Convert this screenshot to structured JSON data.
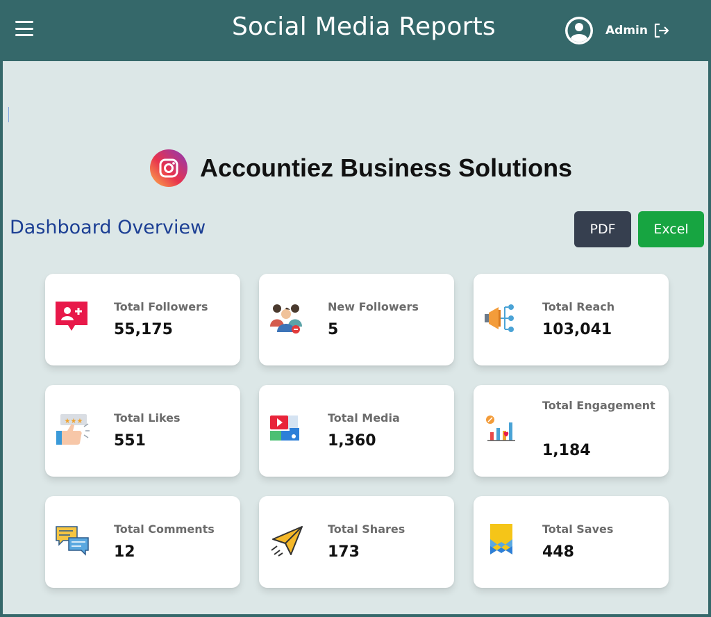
{
  "header": {
    "title": "Social Media Reports",
    "user_name": "Admin"
  },
  "company": {
    "name": "Accountiez Business Solutions",
    "logo_icon": "instagram-logo-icon"
  },
  "dashboard": {
    "title": "Dashboard Overview",
    "pdf_label": "PDF",
    "excel_label": "Excel"
  },
  "colors": {
    "header_bg": "#35686a",
    "content_bg": "#dce7e7",
    "dashboard_title": "#1c3f94",
    "pdf_button": "#363f4f",
    "excel_button": "#17a541"
  },
  "cards": [
    {
      "label": "Total Followers",
      "value": "55,175",
      "icon": "followers-icon"
    },
    {
      "label": "New Followers",
      "value": "5",
      "icon": "new-followers-icon"
    },
    {
      "label": "Total Reach",
      "value": "103,041",
      "icon": "reach-megaphone-icon"
    },
    {
      "label": "Total Likes",
      "value": "551",
      "icon": "likes-thumb-icon"
    },
    {
      "label": "Total Media",
      "value": "1,360",
      "icon": "media-icon"
    },
    {
      "label": "Total Engagement",
      "value": "1,184",
      "icon": "engagement-chart-icon"
    },
    {
      "label": "Total Comments",
      "value": "12",
      "icon": "comments-icon"
    },
    {
      "label": "Total Shares",
      "value": "173",
      "icon": "shares-paper-plane-icon"
    },
    {
      "label": "Total Saves",
      "value": "448",
      "icon": "saves-bookmark-icon"
    }
  ]
}
